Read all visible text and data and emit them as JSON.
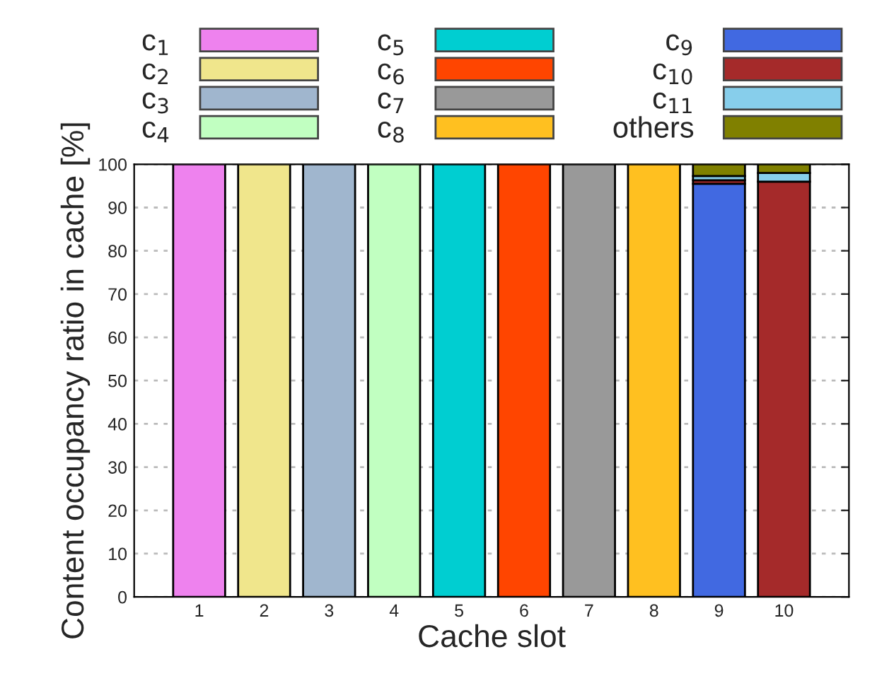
{
  "chart_data": {
    "type": "bar",
    "stacked": true,
    "xlabel": "Cache slot",
    "ylabel": "Content occupancy ratio in cache [%]",
    "categories": [
      "1",
      "2",
      "3",
      "4",
      "5",
      "6",
      "7",
      "8",
      "9",
      "10"
    ],
    "ylim": [
      0,
      100
    ],
    "yticks": [
      0,
      10,
      20,
      30,
      40,
      50,
      60,
      70,
      80,
      90,
      100
    ],
    "grid": "y",
    "legend": "top",
    "series": [
      {
        "name": "c$_{1}$",
        "color": "#ee82ee",
        "values": [
          100,
          null,
          null,
          null,
          null,
          null,
          null,
          null,
          null,
          null
        ]
      },
      {
        "name": "c$_{2}$",
        "color": "#f0e68c",
        "values": [
          null,
          100,
          null,
          null,
          null,
          null,
          null,
          null,
          null,
          null
        ]
      },
      {
        "name": "c$_{3}$",
        "color": "#a0b6ce",
        "values": [
          null,
          null,
          100,
          null,
          null,
          null,
          null,
          null,
          null,
          null
        ]
      },
      {
        "name": "c$_{4}$",
        "color": "#c1ffc1",
        "values": [
          null,
          null,
          null,
          100,
          null,
          null,
          null,
          null,
          null,
          null
        ]
      },
      {
        "name": "c$_{5}$",
        "color": "#00ced1",
        "values": [
          null,
          null,
          null,
          null,
          100,
          null,
          null,
          null,
          null,
          null
        ]
      },
      {
        "name": "c$_{6}$",
        "color": "#ff4500",
        "values": [
          null,
          null,
          null,
          null,
          null,
          100,
          null,
          null,
          null,
          null
        ]
      },
      {
        "name": "c$_{7}$",
        "color": "#999999",
        "values": [
          null,
          null,
          null,
          null,
          null,
          null,
          100,
          null,
          null,
          null
        ]
      },
      {
        "name": "c$_{8}$",
        "color": "#ffc020",
        "values": [
          null,
          null,
          null,
          null,
          null,
          null,
          null,
          100,
          null,
          null
        ]
      },
      {
        "name": "c$_{9}$",
        "color": "#4169e1",
        "values": [
          null,
          null,
          null,
          null,
          null,
          null,
          null,
          null,
          95.5,
          null
        ]
      },
      {
        "name": "c$_{10}$",
        "color": "#a52a2a",
        "values": [
          null,
          null,
          null,
          null,
          null,
          null,
          null,
          null,
          0.8,
          96
        ]
      },
      {
        "name": "c$_{11}$",
        "color": "#87ceeb",
        "values": [
          null,
          null,
          null,
          null,
          null,
          null,
          null,
          null,
          1,
          2
        ]
      },
      {
        "name": "others",
        "color": "#808000",
        "values": [
          null,
          null,
          null,
          null,
          null,
          null,
          null,
          null,
          2.7,
          2
        ]
      }
    ]
  }
}
